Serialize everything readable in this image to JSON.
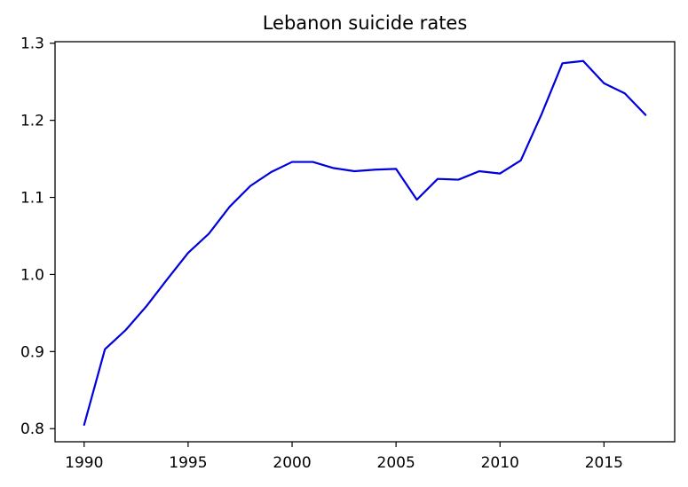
{
  "chart_data": {
    "type": "line",
    "title": "Lebanon suicide rates",
    "xlabel": "",
    "ylabel": "",
    "xlim": [
      1988.6,
      2018.4
    ],
    "ylim": [
      0.783,
      1.302
    ],
    "x_ticks": [
      1990,
      1995,
      2000,
      2005,
      2010,
      2015
    ],
    "y_ticks": [
      0.8,
      0.9,
      1.0,
      1.1,
      1.2,
      1.3
    ],
    "y_tick_labels": [
      "0.8",
      "0.9",
      "1.0",
      "1.1",
      "1.2",
      "1.3"
    ],
    "grid": false,
    "legend": "none",
    "series": [
      {
        "color": "#0000dd",
        "x": [
          1990,
          1991,
          1992,
          1993,
          1994,
          1995,
          1996,
          1997,
          1998,
          1999,
          2000,
          2001,
          2002,
          2003,
          2004,
          2005,
          2006,
          2007,
          2008,
          2009,
          2010,
          2011,
          2012,
          2013,
          2014,
          2015,
          2016,
          2017
        ],
        "y": [
          0.805,
          0.903,
          0.928,
          0.959,
          0.994,
          1.028,
          1.053,
          1.088,
          1.115,
          1.133,
          1.146,
          1.146,
          1.138,
          1.134,
          1.136,
          1.137,
          1.097,
          1.124,
          1.123,
          1.134,
          1.131,
          1.148,
          1.208,
          1.274,
          1.277,
          1.248,
          1.235,
          1.207
        ]
      }
    ]
  }
}
